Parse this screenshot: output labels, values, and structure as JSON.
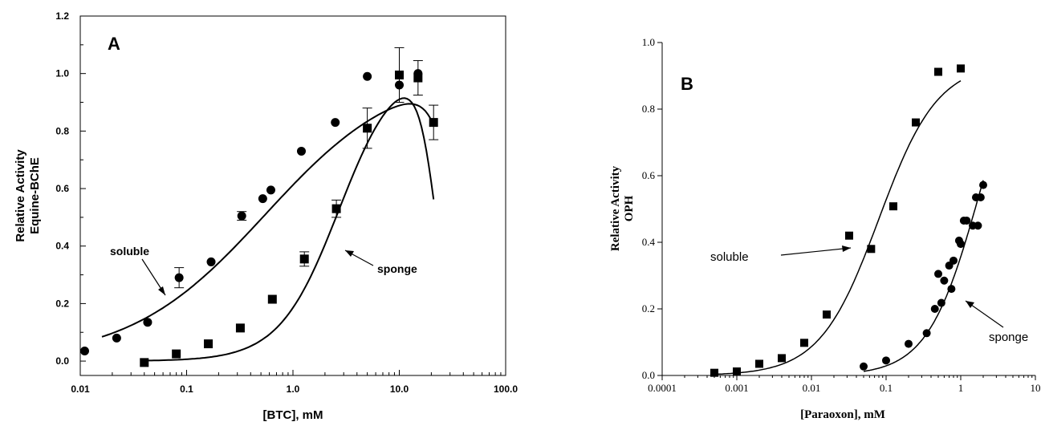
{
  "chart_data": [
    {
      "type": "scatter",
      "panel_label": "A",
      "title": "",
      "xlabel": "[BTC], mM",
      "ylabel_lines": [
        "Relative Activity",
        "Equine-BChE"
      ],
      "x_scale": "log",
      "xlim": [
        0.01,
        100.0
      ],
      "ylim": [
        -0.05,
        1.2
      ],
      "x_tick_labels": [
        "0.01",
        "0.1",
        "1.0",
        "10.0",
        "100.0"
      ],
      "y_tick_labels": [
        "0.0",
        "0.2",
        "0.4",
        "0.6",
        "0.8",
        "1.0",
        "1.2"
      ],
      "series": [
        {
          "name": "soluble",
          "marker": "circle",
          "points": [
            {
              "x": 0.011,
              "y": 0.035
            },
            {
              "x": 0.022,
              "y": 0.08
            },
            {
              "x": 0.043,
              "y": 0.135
            },
            {
              "x": 0.085,
              "y": 0.29,
              "err": 0.035
            },
            {
              "x": 0.17,
              "y": 0.345
            },
            {
              "x": 0.33,
              "y": 0.505,
              "err": 0.015
            },
            {
              "x": 0.52,
              "y": 0.565
            },
            {
              "x": 0.62,
              "y": 0.595
            },
            {
              "x": 1.2,
              "y": 0.73
            },
            {
              "x": 2.5,
              "y": 0.83
            },
            {
              "x": 5.0,
              "y": 0.99
            },
            {
              "x": 10.0,
              "y": 0.96
            },
            {
              "x": 15.0,
              "y": 1.0
            }
          ]
        },
        {
          "name": "sponge",
          "marker": "square",
          "points": [
            {
              "x": 0.04,
              "y": -0.005
            },
            {
              "x": 0.08,
              "y": 0.025
            },
            {
              "x": 0.16,
              "y": 0.06
            },
            {
              "x": 0.32,
              "y": 0.115
            },
            {
              "x": 0.64,
              "y": 0.215
            },
            {
              "x": 1.28,
              "y": 0.355,
              "err": 0.025
            },
            {
              "x": 2.56,
              "y": 0.53,
              "err": 0.03
            },
            {
              "x": 5.0,
              "y": 0.81,
              "err": 0.07
            },
            {
              "x": 10.0,
              "y": 0.995,
              "err": 0.095
            },
            {
              "x": 15.0,
              "y": 0.985,
              "err": 0.06
            },
            {
              "x": 21.0,
              "y": 0.83,
              "err": 0.06
            }
          ]
        }
      ],
      "annotations": [
        "soluble",
        "sponge"
      ]
    },
    {
      "type": "scatter",
      "panel_label": "B",
      "title": "",
      "xlabel": "[Paraoxon], mM",
      "ylabel_lines": [
        "Relative Activity",
        "OPH"
      ],
      "x_scale": "log",
      "xlim": [
        0.0001,
        10
      ],
      "ylim": [
        0.0,
        1.0
      ],
      "x_tick_labels": [
        "0.0001",
        "0.001",
        "0.01",
        "0.1",
        "1",
        "10"
      ],
      "y_tick_labels": [
        "0.0",
        "0.2",
        "0.4",
        "0.6",
        "0.8",
        "1.0"
      ],
      "series": [
        {
          "name": "soluble",
          "marker": "square",
          "points": [
            {
              "x": 0.0005,
              "y": 0.008
            },
            {
              "x": 0.001,
              "y": 0.012
            },
            {
              "x": 0.002,
              "y": 0.035
            },
            {
              "x": 0.004,
              "y": 0.052
            },
            {
              "x": 0.008,
              "y": 0.098
            },
            {
              "x": 0.016,
              "y": 0.183
            },
            {
              "x": 0.032,
              "y": 0.42
            },
            {
              "x": 0.063,
              "y": 0.38
            },
            {
              "x": 0.125,
              "y": 0.508
            },
            {
              "x": 0.25,
              "y": 0.76
            },
            {
              "x": 0.5,
              "y": 0.912
            },
            {
              "x": 1.0,
              "y": 0.922
            }
          ]
        },
        {
          "name": "sponge",
          "marker": "circle",
          "points": [
            {
              "x": 0.05,
              "y": 0.027
            },
            {
              "x": 0.1,
              "y": 0.045
            },
            {
              "x": 0.2,
              "y": 0.095
            },
            {
              "x": 0.35,
              "y": 0.127
            },
            {
              "x": 0.45,
              "y": 0.2
            },
            {
              "x": 0.5,
              "y": 0.305
            },
            {
              "x": 0.55,
              "y": 0.218
            },
            {
              "x": 0.6,
              "y": 0.285
            },
            {
              "x": 0.7,
              "y": 0.33
            },
            {
              "x": 0.75,
              "y": 0.26
            },
            {
              "x": 0.8,
              "y": 0.345
            },
            {
              "x": 0.95,
              "y": 0.405
            },
            {
              "x": 1.0,
              "y": 0.395
            },
            {
              "x": 1.1,
              "y": 0.465
            },
            {
              "x": 1.2,
              "y": 0.465
            },
            {
              "x": 1.45,
              "y": 0.45
            },
            {
              "x": 1.6,
              "y": 0.535
            },
            {
              "x": 1.7,
              "y": 0.45
            },
            {
              "x": 1.85,
              "y": 0.535
            },
            {
              "x": 2.0,
              "y": 0.572
            }
          ]
        }
      ],
      "annotations": [
        "soluble",
        "sponge"
      ]
    }
  ]
}
